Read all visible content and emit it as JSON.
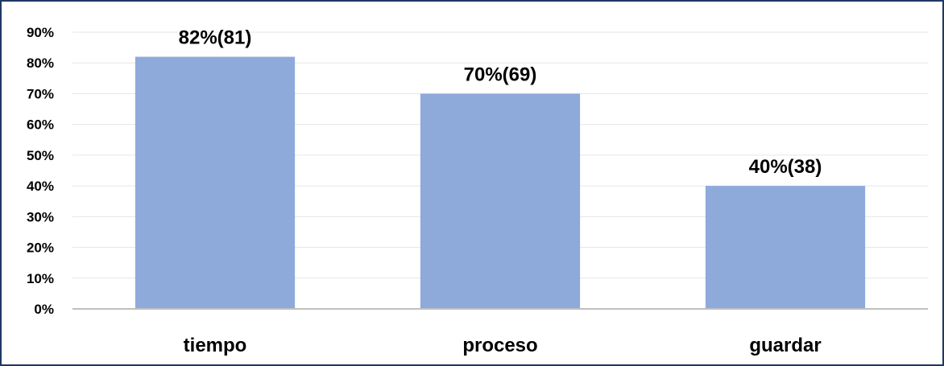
{
  "chart_data": {
    "type": "bar",
    "categories": [
      "tiempo",
      "proceso",
      "guardar"
    ],
    "values": [
      82,
      70,
      40
    ],
    "data_labels": [
      "82%(81)",
      "70%(69)",
      "40%(38)"
    ],
    "yticks": [
      "0%",
      "10%",
      "20%",
      "30%",
      "40%",
      "50%",
      "60%",
      "70%",
      "80%",
      "90%"
    ],
    "ylim": [
      0,
      90
    ],
    "title": "",
    "xlabel": "",
    "ylabel": "",
    "grid": true,
    "legend": "none",
    "colors": {
      "bar": "#8eaadb",
      "grid": "#e6e6e6",
      "axis": "#bfbfbf",
      "border": "#1f3864"
    }
  }
}
